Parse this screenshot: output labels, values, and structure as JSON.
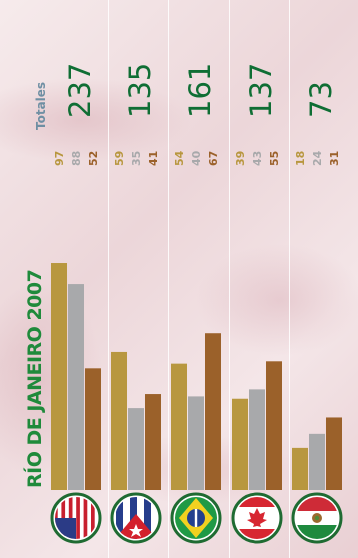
{
  "title": "RÍO DE JANEIRO 2007",
  "totals_label": "Totales",
  "colors": {
    "gold": "#b8973f",
    "silver": "#a8a9ab",
    "bronze": "#9b612a",
    "title": "#1f8a3b",
    "totals": "#0f6e34"
  },
  "chart_data": {
    "type": "bar",
    "orientation": "vertical-rotated",
    "title": "RÍO DE JANEIRO 2007",
    "categories": [
      "us-flag",
      "cuba-flag",
      "brazil-flag",
      "canada-flag",
      "mexico-flag"
    ],
    "series": [
      {
        "values": [
          97,
          59,
          54,
          39,
          18
        ]
      },
      {
        "values": [
          88,
          35,
          40,
          43,
          24
        ]
      },
      {
        "values": [
          52,
          41,
          67,
          55,
          31
        ]
      }
    ],
    "totals": [
      237,
      135,
      161,
      137,
      73
    ],
    "ylim": [
      0,
      100
    ]
  }
}
